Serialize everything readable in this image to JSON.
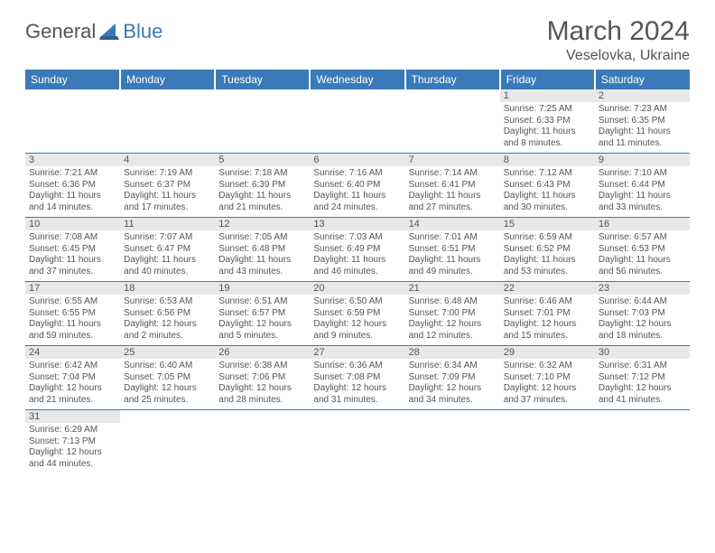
{
  "logo": {
    "text1": "General",
    "text2": "Blue"
  },
  "title": "March 2024",
  "location": "Veselovka, Ukraine",
  "day_headers": [
    "Sunday",
    "Monday",
    "Tuesday",
    "Wednesday",
    "Thursday",
    "Friday",
    "Saturday"
  ],
  "colors": {
    "header_bg": "#3a7ab8",
    "text": "#555555",
    "daynum_bg": "#e8e8e8",
    "row_border": "#3a7ab8"
  },
  "weeks": [
    [
      null,
      null,
      null,
      null,
      null,
      {
        "n": "1",
        "sr": "Sunrise: 7:25 AM",
        "ss": "Sunset: 6:33 PM",
        "dl1": "Daylight: 11 hours",
        "dl2": "and 8 minutes."
      },
      {
        "n": "2",
        "sr": "Sunrise: 7:23 AM",
        "ss": "Sunset: 6:35 PM",
        "dl1": "Daylight: 11 hours",
        "dl2": "and 11 minutes."
      }
    ],
    [
      {
        "n": "3",
        "sr": "Sunrise: 7:21 AM",
        "ss": "Sunset: 6:36 PM",
        "dl1": "Daylight: 11 hours",
        "dl2": "and 14 minutes."
      },
      {
        "n": "4",
        "sr": "Sunrise: 7:19 AM",
        "ss": "Sunset: 6:37 PM",
        "dl1": "Daylight: 11 hours",
        "dl2": "and 17 minutes."
      },
      {
        "n": "5",
        "sr": "Sunrise: 7:18 AM",
        "ss": "Sunset: 6:39 PM",
        "dl1": "Daylight: 11 hours",
        "dl2": "and 21 minutes."
      },
      {
        "n": "6",
        "sr": "Sunrise: 7:16 AM",
        "ss": "Sunset: 6:40 PM",
        "dl1": "Daylight: 11 hours",
        "dl2": "and 24 minutes."
      },
      {
        "n": "7",
        "sr": "Sunrise: 7:14 AM",
        "ss": "Sunset: 6:41 PM",
        "dl1": "Daylight: 11 hours",
        "dl2": "and 27 minutes."
      },
      {
        "n": "8",
        "sr": "Sunrise: 7:12 AM",
        "ss": "Sunset: 6:43 PM",
        "dl1": "Daylight: 11 hours",
        "dl2": "and 30 minutes."
      },
      {
        "n": "9",
        "sr": "Sunrise: 7:10 AM",
        "ss": "Sunset: 6:44 PM",
        "dl1": "Daylight: 11 hours",
        "dl2": "and 33 minutes."
      }
    ],
    [
      {
        "n": "10",
        "sr": "Sunrise: 7:08 AM",
        "ss": "Sunset: 6:45 PM",
        "dl1": "Daylight: 11 hours",
        "dl2": "and 37 minutes."
      },
      {
        "n": "11",
        "sr": "Sunrise: 7:07 AM",
        "ss": "Sunset: 6:47 PM",
        "dl1": "Daylight: 11 hours",
        "dl2": "and 40 minutes."
      },
      {
        "n": "12",
        "sr": "Sunrise: 7:05 AM",
        "ss": "Sunset: 6:48 PM",
        "dl1": "Daylight: 11 hours",
        "dl2": "and 43 minutes."
      },
      {
        "n": "13",
        "sr": "Sunrise: 7:03 AM",
        "ss": "Sunset: 6:49 PM",
        "dl1": "Daylight: 11 hours",
        "dl2": "and 46 minutes."
      },
      {
        "n": "14",
        "sr": "Sunrise: 7:01 AM",
        "ss": "Sunset: 6:51 PM",
        "dl1": "Daylight: 11 hours",
        "dl2": "and 49 minutes."
      },
      {
        "n": "15",
        "sr": "Sunrise: 6:59 AM",
        "ss": "Sunset: 6:52 PM",
        "dl1": "Daylight: 11 hours",
        "dl2": "and 53 minutes."
      },
      {
        "n": "16",
        "sr": "Sunrise: 6:57 AM",
        "ss": "Sunset: 6:53 PM",
        "dl1": "Daylight: 11 hours",
        "dl2": "and 56 minutes."
      }
    ],
    [
      {
        "n": "17",
        "sr": "Sunrise: 6:55 AM",
        "ss": "Sunset: 6:55 PM",
        "dl1": "Daylight: 11 hours",
        "dl2": "and 59 minutes."
      },
      {
        "n": "18",
        "sr": "Sunrise: 6:53 AM",
        "ss": "Sunset: 6:56 PM",
        "dl1": "Daylight: 12 hours",
        "dl2": "and 2 minutes."
      },
      {
        "n": "19",
        "sr": "Sunrise: 6:51 AM",
        "ss": "Sunset: 6:57 PM",
        "dl1": "Daylight: 12 hours",
        "dl2": "and 5 minutes."
      },
      {
        "n": "20",
        "sr": "Sunrise: 6:50 AM",
        "ss": "Sunset: 6:59 PM",
        "dl1": "Daylight: 12 hours",
        "dl2": "and 9 minutes."
      },
      {
        "n": "21",
        "sr": "Sunrise: 6:48 AM",
        "ss": "Sunset: 7:00 PM",
        "dl1": "Daylight: 12 hours",
        "dl2": "and 12 minutes."
      },
      {
        "n": "22",
        "sr": "Sunrise: 6:46 AM",
        "ss": "Sunset: 7:01 PM",
        "dl1": "Daylight: 12 hours",
        "dl2": "and 15 minutes."
      },
      {
        "n": "23",
        "sr": "Sunrise: 6:44 AM",
        "ss": "Sunset: 7:03 PM",
        "dl1": "Daylight: 12 hours",
        "dl2": "and 18 minutes."
      }
    ],
    [
      {
        "n": "24",
        "sr": "Sunrise: 6:42 AM",
        "ss": "Sunset: 7:04 PM",
        "dl1": "Daylight: 12 hours",
        "dl2": "and 21 minutes."
      },
      {
        "n": "25",
        "sr": "Sunrise: 6:40 AM",
        "ss": "Sunset: 7:05 PM",
        "dl1": "Daylight: 12 hours",
        "dl2": "and 25 minutes."
      },
      {
        "n": "26",
        "sr": "Sunrise: 6:38 AM",
        "ss": "Sunset: 7:06 PM",
        "dl1": "Daylight: 12 hours",
        "dl2": "and 28 minutes."
      },
      {
        "n": "27",
        "sr": "Sunrise: 6:36 AM",
        "ss": "Sunset: 7:08 PM",
        "dl1": "Daylight: 12 hours",
        "dl2": "and 31 minutes."
      },
      {
        "n": "28",
        "sr": "Sunrise: 6:34 AM",
        "ss": "Sunset: 7:09 PM",
        "dl1": "Daylight: 12 hours",
        "dl2": "and 34 minutes."
      },
      {
        "n": "29",
        "sr": "Sunrise: 6:32 AM",
        "ss": "Sunset: 7:10 PM",
        "dl1": "Daylight: 12 hours",
        "dl2": "and 37 minutes."
      },
      {
        "n": "30",
        "sr": "Sunrise: 6:31 AM",
        "ss": "Sunset: 7:12 PM",
        "dl1": "Daylight: 12 hours",
        "dl2": "and 41 minutes."
      }
    ],
    [
      {
        "n": "31",
        "sr": "Sunrise: 6:29 AM",
        "ss": "Sunset: 7:13 PM",
        "dl1": "Daylight: 12 hours",
        "dl2": "and 44 minutes."
      },
      null,
      null,
      null,
      null,
      null,
      null
    ]
  ]
}
